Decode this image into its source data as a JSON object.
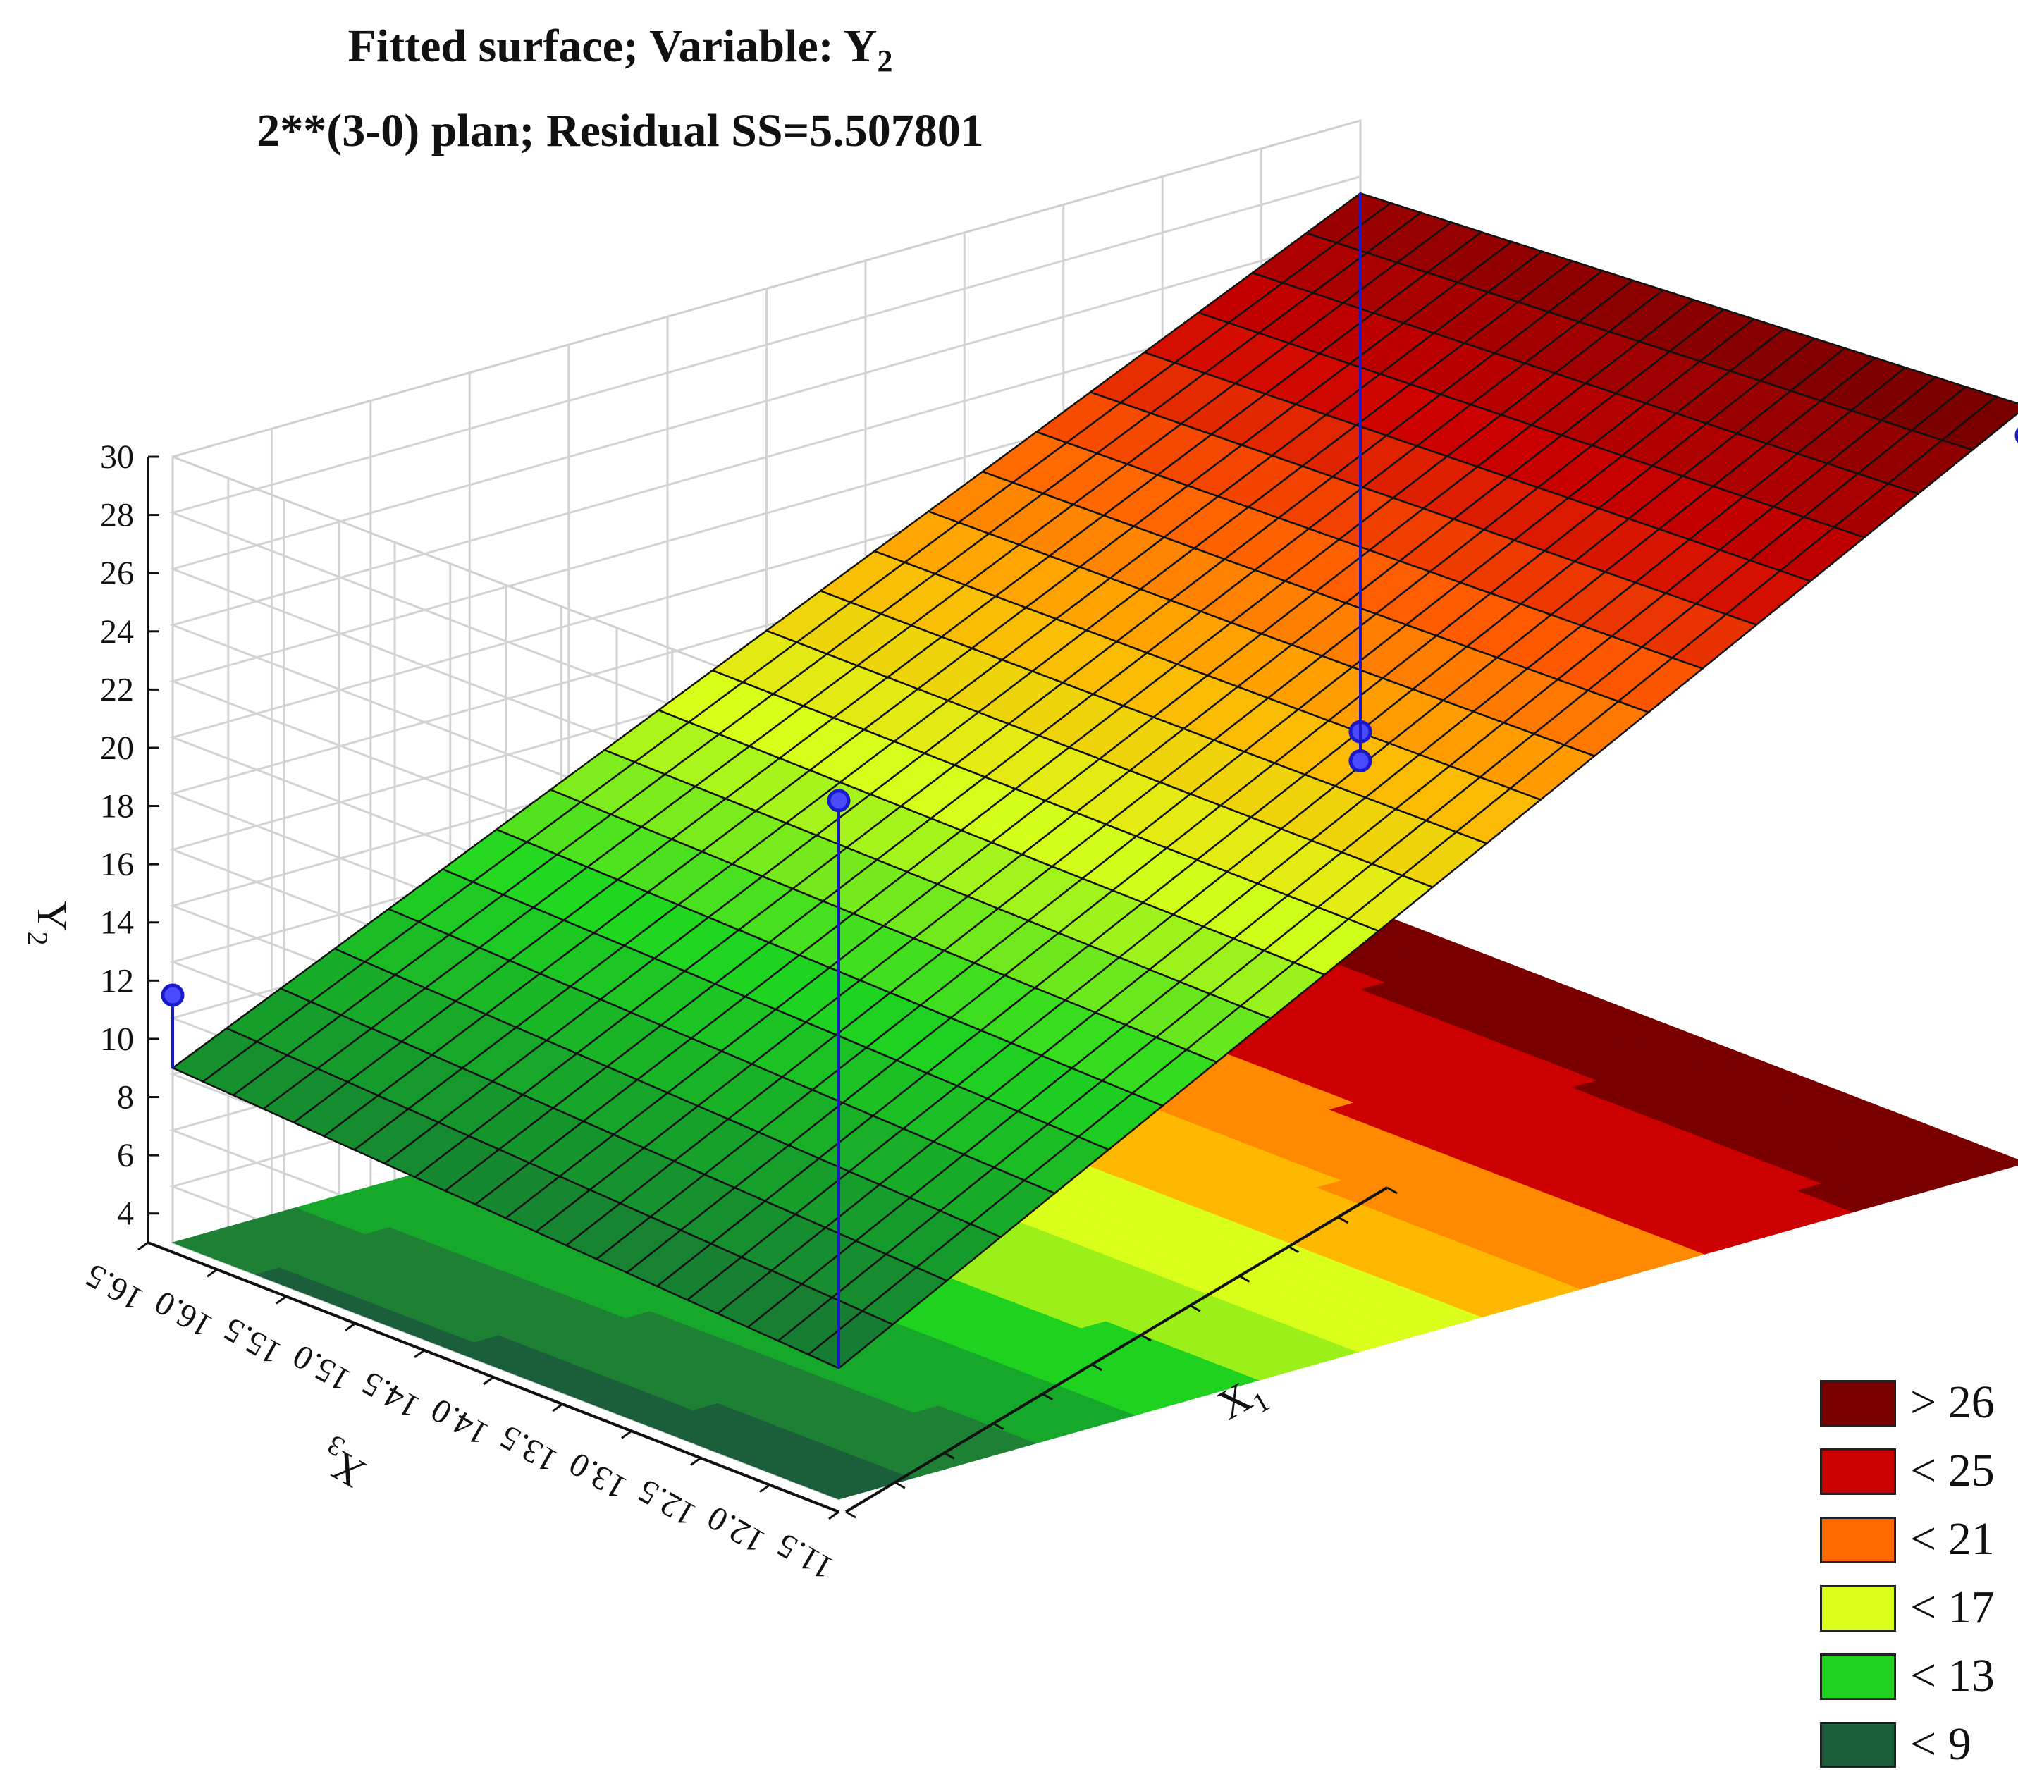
{
  "chart_data": {
    "type": "surface",
    "title_line1_main": "Fitted surface; Variable: Y",
    "title_line1_sub": "2",
    "title_line2": "2**(3-0) plan; Residual SS=5.507801",
    "zlabel_main": "Y",
    "zlabel_sub": "2",
    "x1label_main": "X",
    "x1label_sub": "1",
    "x3label_main": "X",
    "x3label_sub": "3",
    "z_ticks": [
      "30",
      "28",
      "26",
      "24",
      "22",
      "20",
      "18",
      "16",
      "14",
      "12",
      "10",
      "8",
      "6",
      "4"
    ],
    "zlim": [
      3,
      30
    ],
    "x3_ticks": [
      "16.5",
      "16.0",
      "15.5",
      "15.0",
      "14.5",
      "14.0",
      "13.5",
      "13.0",
      "12.5",
      "12.0",
      "11.5"
    ],
    "x3_range": [
      11.5,
      16.5
    ],
    "x1_ticks": [
      "",
      "",
      "",
      "",
      "",
      "",
      "",
      "",
      "",
      "",
      "",
      ""
    ],
    "x1_range": [
      0,
      1
    ],
    "surface_corners": {
      "x1_min_x3_max": 9.0,
      "x1_max_x3_max": 27.5,
      "x1_min_x3_min": 7.5,
      "x1_max_x3_min": 29.0
    },
    "observed_points": [
      {
        "x1": 0,
        "x3": 16.5,
        "y": 11.5
      },
      {
        "x1": 1,
        "x3": 11.5,
        "y": 28.0
      },
      {
        "x1": 0,
        "x3": 11.5,
        "y": 27.0
      },
      {
        "x1": 1,
        "x3": 16.5,
        "y": 9.0
      },
      {
        "x1": 1,
        "x3": 16.5,
        "y": 8.0
      }
    ],
    "legend": [
      {
        "label": "> 26",
        "color": "#7a0000"
      },
      {
        "label": "< 25",
        "color": "#cc0000"
      },
      {
        "label": "< 21",
        "color": "#ff6a00"
      },
      {
        "label": "< 17",
        "color": "#d9ff1a"
      },
      {
        "label": "< 13",
        "color": "#1fd21f"
      },
      {
        "label": "< 9",
        "color": "#1a5e3a"
      }
    ],
    "marker_color": "#1a1acc",
    "grid": true
  }
}
